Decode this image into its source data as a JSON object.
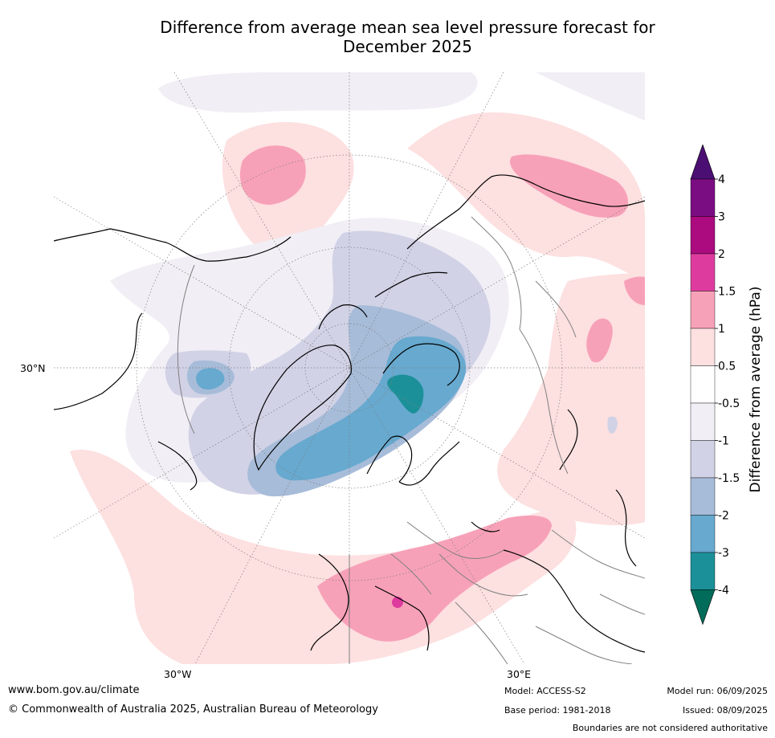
{
  "title": {
    "line1": "Difference from average mean sea level pressure forecast for",
    "line2": "December 2025"
  },
  "map": {
    "projection": "north-polar-stereographic",
    "labels": {
      "lat_30n": "30°N",
      "lon_30w": "30°W",
      "lon_30e": "30°E"
    },
    "colors": {
      "ocean_background": "#ffffff",
      "coastline": "#000000",
      "borders": "#808080",
      "graticule": "#7f7f7f"
    }
  },
  "colorbar": {
    "title": "Difference from average (hPa)",
    "tick_labels": [
      "4",
      "3",
      "2",
      "1.5",
      "1",
      "0.5",
      "-0.5",
      "-1",
      "-1.5",
      "-2",
      "-3",
      "-4"
    ],
    "bins": [
      {
        "range": "> 4",
        "color": "#4b0f73"
      },
      {
        "range": "3 to 4",
        "color": "#7b0d82"
      },
      {
        "range": "2 to 3",
        "color": "#ab0b7e"
      },
      {
        "range": "1.5 to 2",
        "color": "#de3b9e"
      },
      {
        "range": "1 to 1.5",
        "color": "#f7a1b8"
      },
      {
        "range": "0.5 to 1",
        "color": "#fde0e0"
      },
      {
        "range": "-0.5 to 0.5",
        "color": "#ffffff"
      },
      {
        "range": "-1 to -0.5",
        "color": "#f1eef5"
      },
      {
        "range": "-1.5 to -1",
        "color": "#d1d2e6"
      },
      {
        "range": "-2 to -1.5",
        "color": "#a7bcd9"
      },
      {
        "range": "-3 to -2",
        "color": "#67a9cf"
      },
      {
        "range": "-4 to -3",
        "color": "#1c9099"
      },
      {
        "range": "< -4",
        "color": "#016c59"
      }
    ]
  },
  "footer": {
    "url": "www.bom.gov.au/climate",
    "copyright": "© Commonwealth of Australia 2025, Australian Bureau of Meteorology",
    "model": "Model: ACCESS-S2",
    "base_period": "Base period: 1981-2018",
    "model_run": "Model run: 06/09/2025",
    "issued": "Issued: 08/09/2025",
    "disclaimer": "Boundaries are not considered authoritative"
  }
}
